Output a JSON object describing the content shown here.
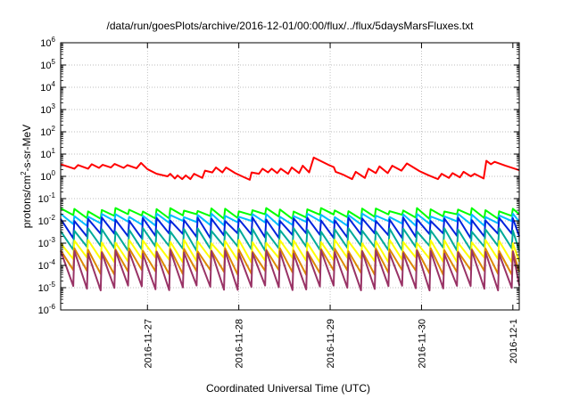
{
  "chart_data": {
    "type": "line",
    "title": "/data/run/goesPlots/archive/2016-12-01/00:00/flux/../flux/5daysMarsFluxes.txt",
    "xlabel": "Coordinated Universal Time (UTC)",
    "ylabel": {
      "base": "protons/cm",
      "sup": "2",
      "rest": "-s-sr-MeV"
    },
    "yscale": "log",
    "ylim": [
      1e-06,
      1000000.0
    ],
    "xlim_days": [
      -0.95,
      4.07
    ],
    "x_axis_origin": "2016-11-27",
    "x_tick_labels": [
      "2016-11-27",
      "2016-11-28",
      "2016-11-29",
      "2016-11-30",
      "2016-12-1"
    ],
    "y_tick_labels": [
      {
        "base": "10",
        "exp": "-6"
      },
      {
        "base": "10",
        "exp": "-5"
      },
      {
        "base": "10",
        "exp": "-4"
      },
      {
        "base": "10",
        "exp": "-3"
      },
      {
        "base": "10",
        "exp": "-2"
      },
      {
        "base": "10",
        "exp": "-1"
      },
      {
        "base": "10",
        "exp": "0"
      },
      {
        "base": "10",
        "exp": "1"
      },
      {
        "base": "10",
        "exp": "2"
      },
      {
        "base": "10",
        "exp": "3"
      },
      {
        "base": "10",
        "exp": "4"
      },
      {
        "base": "10",
        "exp": "5"
      },
      {
        "base": "10",
        "exp": "6"
      }
    ],
    "grid": true,
    "legend": "none",
    "series": [
      {
        "color": "#ff0000",
        "points": [
          [
            -0.95,
            3.5
          ],
          [
            -0.8,
            2.2
          ],
          [
            -0.76,
            3.2
          ],
          [
            -0.65,
            2.2
          ],
          [
            -0.61,
            3.5
          ],
          [
            -0.53,
            2.4
          ],
          [
            -0.49,
            3.3
          ],
          [
            -0.4,
            2.5
          ],
          [
            -0.36,
            3.6
          ],
          [
            -0.26,
            2.4
          ],
          [
            -0.22,
            3.2
          ],
          [
            -0.12,
            2.3
          ],
          [
            -0.07,
            4.0
          ],
          [
            0.0,
            2.1
          ],
          [
            0.1,
            1.3
          ],
          [
            0.22,
            1.0
          ],
          [
            0.25,
            1.3
          ],
          [
            0.3,
            0.8
          ],
          [
            0.33,
            1.1
          ],
          [
            0.38,
            0.75
          ],
          [
            0.42,
            1.1
          ],
          [
            0.47,
            0.75
          ],
          [
            0.51,
            1.3
          ],
          [
            0.6,
            0.85
          ],
          [
            0.63,
            1.8
          ],
          [
            0.71,
            1.5
          ],
          [
            0.75,
            2.5
          ],
          [
            0.82,
            1.5
          ],
          [
            0.86,
            2.5
          ],
          [
            0.96,
            1.4
          ],
          [
            1.06,
            0.9
          ],
          [
            1.12,
            0.7
          ],
          [
            1.14,
            1.5
          ],
          [
            1.22,
            1.3
          ],
          [
            1.26,
            2.2
          ],
          [
            1.32,
            1.5
          ],
          [
            1.36,
            2.2
          ],
          [
            1.42,
            1.4
          ],
          [
            1.46,
            2.2
          ],
          [
            1.54,
            1.3
          ],
          [
            1.58,
            2.5
          ],
          [
            1.66,
            1.4
          ],
          [
            1.7,
            3.0
          ],
          [
            1.77,
            1.5
          ],
          [
            1.82,
            7.0
          ],
          [
            1.98,
            3.3
          ],
          [
            2.04,
            2.6
          ],
          [
            2.06,
            1.6
          ],
          [
            2.14,
            1.2
          ],
          [
            2.24,
            0.75
          ],
          [
            2.28,
            1.6
          ],
          [
            2.38,
            0.85
          ],
          [
            2.42,
            2.2
          ],
          [
            2.5,
            1.4
          ],
          [
            2.54,
            2.8
          ],
          [
            2.63,
            1.4
          ],
          [
            2.68,
            3.0
          ],
          [
            2.78,
            1.8
          ],
          [
            2.84,
            3.8
          ],
          [
            2.98,
            1.7
          ],
          [
            3.08,
            1.1
          ],
          [
            3.18,
            0.75
          ],
          [
            3.22,
            1.3
          ],
          [
            3.3,
            0.85
          ],
          [
            3.34,
            1.4
          ],
          [
            3.42,
            0.9
          ],
          [
            3.46,
            1.6
          ],
          [
            3.54,
            1.0
          ],
          [
            3.58,
            1.3
          ],
          [
            3.68,
            0.8
          ],
          [
            3.71,
            5.0
          ],
          [
            3.76,
            3.5
          ],
          [
            3.8,
            4.5
          ],
          [
            3.92,
            3.0
          ],
          [
            4.07,
            1.9
          ]
        ]
      },
      {
        "color": "#00ff00",
        "mid": 0.022,
        "amp": 1.5,
        "dip": 0.016,
        "peak": 0.032
      },
      {
        "color": "#00bbff",
        "mid": 0.011,
        "amp": 1.6,
        "dip": 0.008,
        "peak": 0.018
      },
      {
        "color": "#0022dd",
        "mid": 0.0045,
        "amp": 2.0,
        "dip": 0.0022,
        "peak": 0.012
      },
      {
        "color": "#00aa99",
        "mid": 0.0012,
        "amp": 2.2,
        "dip": 0.0006,
        "peak": 0.004
      },
      {
        "color": "#ffff00",
        "mid": 0.0005,
        "amp": 2.3,
        "dip": 0.00018,
        "peak": 0.0012
      },
      {
        "color": "#dd8800",
        "mid": 0.0002,
        "amp": 2.5,
        "dip": 5e-05,
        "peak": 0.0005
      },
      {
        "color": "#993366",
        "mid": 5e-05,
        "amp": 3.2,
        "dip": 1e-05,
        "peak": 0.0004
      }
    ]
  }
}
